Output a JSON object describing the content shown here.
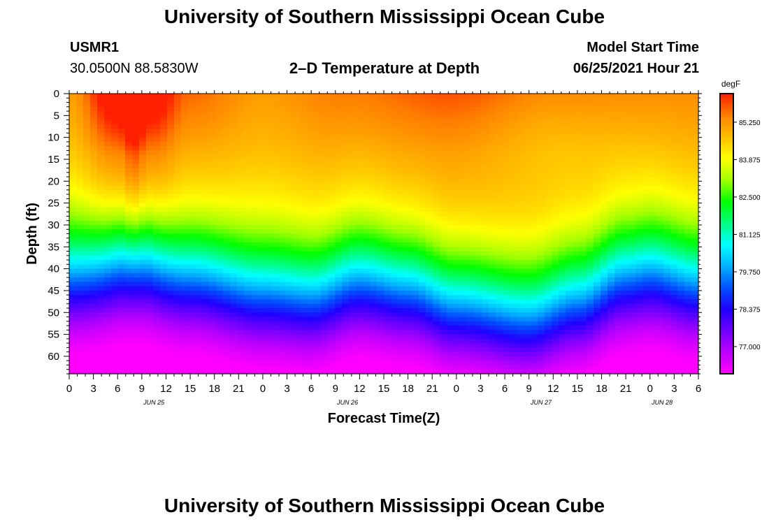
{
  "header": {
    "title": "University of Southern Mississippi Ocean Cube",
    "station_id": "USMR1",
    "location": "30.0500N  88.5830W",
    "plot_title": "2–D Temperature at Depth",
    "model_start_label": "Model Start Time",
    "model_start_value": "06/25/2021 Hour 21"
  },
  "footer": {
    "title": "University of Southern Mississippi Ocean Cube"
  },
  "chart_data": {
    "type": "heatmap",
    "title": "2–D Temperature at Depth",
    "xlabel": "Forecast Time(Z)",
    "ylabel": "Depth (ft)",
    "xlim": [
      0,
      78
    ],
    "ylim": [
      0,
      64
    ],
    "y_inverted": true,
    "x_ticks": [
      0,
      3,
      6,
      9,
      12,
      15,
      18,
      21,
      24,
      27,
      30,
      33,
      36,
      39,
      42,
      45,
      48,
      51,
      54,
      57,
      60,
      63,
      66,
      69,
      72,
      75,
      78
    ],
    "x_tick_labels": [
      "0",
      "3",
      "6",
      "9",
      "12",
      "15",
      "18",
      "21",
      "0",
      "3",
      "6",
      "9",
      "12",
      "15",
      "18",
      "21",
      "0",
      "3",
      "6",
      "9",
      "12",
      "15",
      "18",
      "21",
      "0",
      "3",
      "6"
    ],
    "y_ticks": [
      0,
      5,
      10,
      15,
      20,
      25,
      30,
      35,
      40,
      45,
      50,
      55,
      60
    ],
    "y_tick_labels": [
      "0",
      "5",
      "10",
      "15",
      "20",
      "25",
      "30",
      "35",
      "40",
      "45",
      "50",
      "55",
      "60"
    ],
    "date_labels": [
      {
        "x": 10.5,
        "label": "JUN 25"
      },
      {
        "x": 34.5,
        "label": "JUN 26"
      },
      {
        "x": 58.5,
        "label": "JUN 27"
      },
      {
        "x": 73.5,
        "label": "JUN 28"
      }
    ],
    "colorbar": {
      "unit": "degF",
      "min": 76.0,
      "max": 86.3,
      "tick_values": [
        85.25,
        83.875,
        82.5,
        81.125,
        79.75,
        78.375,
        77.0
      ],
      "tick_labels": [
        "85.250",
        "83.875",
        "82.500",
        "81.125",
        "79.750",
        "78.375",
        "77.000"
      ],
      "colors": [
        "#ff00ff",
        "#c000ff",
        "#7000ff",
        "#2000ff",
        "#0050ff",
        "#00b0ff",
        "#00ffff",
        "#00ff80",
        "#00ff00",
        "#a0ff00",
        "#ffff00",
        "#ffc000",
        "#ff8000",
        "#ff2000"
      ]
    },
    "field": {
      "description": "temperature (degF) vs depth (ft) and forecast hour",
      "surface_temp_by_hour": [
        [
          0,
          84.6
        ],
        [
          6,
          85.6
        ],
        [
          8,
          86.2
        ],
        [
          10,
          85.6
        ],
        [
          15,
          84.9
        ],
        [
          24,
          84.6
        ],
        [
          34,
          84.8
        ],
        [
          48,
          85.0
        ],
        [
          60,
          84.8
        ],
        [
          78,
          84.7
        ]
      ],
      "thermocline_depth_by_hour": [
        [
          0,
          41
        ],
        [
          8,
          37
        ],
        [
          15,
          41
        ],
        [
          24,
          45
        ],
        [
          30,
          46
        ],
        [
          36,
          42
        ],
        [
          42,
          44
        ],
        [
          48,
          48
        ],
        [
          57,
          51
        ],
        [
          63,
          47
        ],
        [
          69,
          41
        ],
        [
          72,
          40
        ],
        [
          78,
          43
        ]
      ],
      "bottom_temp": 76.3
    }
  }
}
